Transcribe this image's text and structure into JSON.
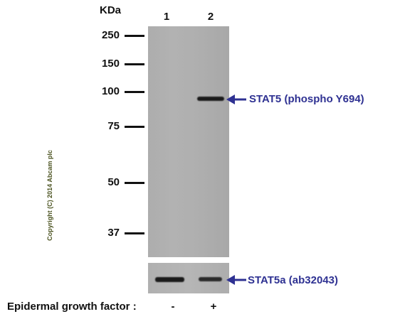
{
  "header": {
    "kda_label": "KDa"
  },
  "lanes": {
    "lane1": "1",
    "lane2": "2"
  },
  "markers": [
    "250",
    "150",
    "100",
    "75",
    "50",
    "37"
  ],
  "annotations": {
    "main_band": "STAT5 (phospho Y694)",
    "control_band": "STAT5a (ab32043)"
  },
  "copyright": "Copyright (C) 2014 Abcam plc",
  "treatment": {
    "label": "Epidermal growth factor :",
    "lane1": "-",
    "lane2": "+"
  },
  "colors": {
    "annotation": "#2e3192",
    "copyright": "#4b5320"
  }
}
